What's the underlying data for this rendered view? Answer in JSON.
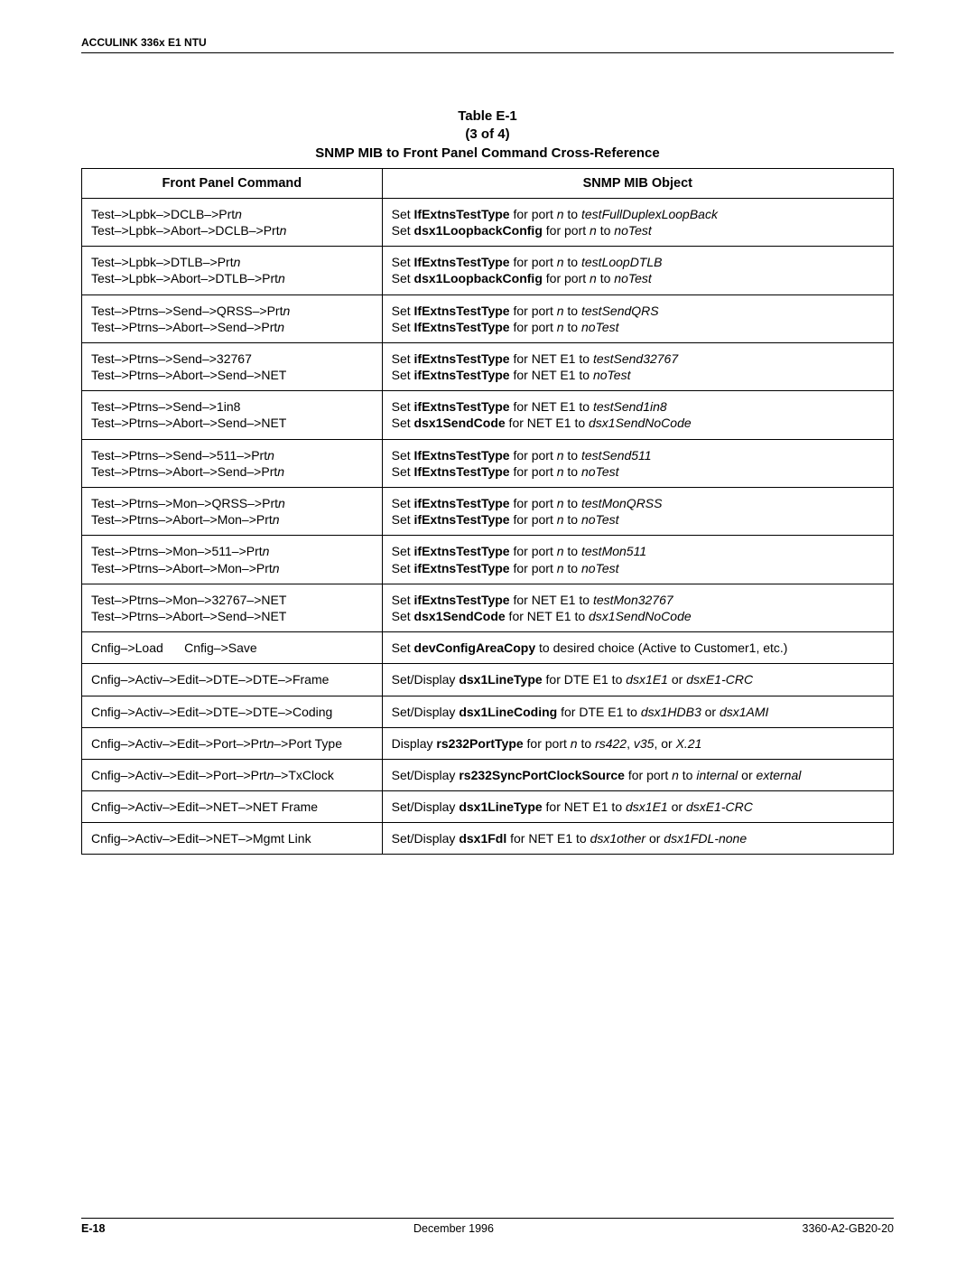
{
  "header": {
    "title": "ACCULINK 336x E1 NTU"
  },
  "caption": {
    "line1": "Table E-1",
    "line2": "(3 of 4)",
    "line3": "SNMP MIB to Front Panel Command Cross-Reference"
  },
  "columns": {
    "col1": "Front Panel Command",
    "col2": "SNMP MIB Object"
  },
  "rows": [
    {
      "cmd": [
        [
          {
            "t": "Test–>Lpbk–>DCLB–>Prt"
          },
          {
            "t": "n",
            "i": true
          }
        ],
        [
          {
            "t": "Test–>Lpbk–>Abort–>DCLB–>Prt"
          },
          {
            "t": "n",
            "i": true
          }
        ]
      ],
      "obj": [
        [
          {
            "t": "Set "
          },
          {
            "t": "IfExtnsTestType",
            "b": true
          },
          {
            "t": " for port "
          },
          {
            "t": "n",
            "i": true
          },
          {
            "t": " to "
          },
          {
            "t": "testFullDuplexLoopBack",
            "i": true
          }
        ],
        [
          {
            "t": "Set "
          },
          {
            "t": "dsx1LoopbackConfig",
            "b": true
          },
          {
            "t": " for port "
          },
          {
            "t": "n",
            "i": true
          },
          {
            "t": " to "
          },
          {
            "t": "noTest",
            "i": true
          }
        ]
      ]
    },
    {
      "cmd": [
        [
          {
            "t": "Test–>Lpbk–>DTLB–>Prt"
          },
          {
            "t": "n",
            "i": true
          }
        ],
        [
          {
            "t": "Test–>Lpbk–>Abort–>DTLB–>Prt"
          },
          {
            "t": "n",
            "i": true
          }
        ]
      ],
      "obj": [
        [
          {
            "t": "Set "
          },
          {
            "t": "IfExtnsTestType",
            "b": true
          },
          {
            "t": " for port "
          },
          {
            "t": "n",
            "i": true
          },
          {
            "t": " to "
          },
          {
            "t": "testLoopDTLB",
            "i": true
          }
        ],
        [
          {
            "t": "Set "
          },
          {
            "t": "dsx1LoopbackConfig",
            "b": true
          },
          {
            "t": " for port "
          },
          {
            "t": "n",
            "i": true
          },
          {
            "t": " to "
          },
          {
            "t": "noTest",
            "i": true
          }
        ]
      ]
    },
    {
      "cmd": [
        [
          {
            "t": "Test–>Ptrns–>Send–>QRSS–>Prt"
          },
          {
            "t": "n",
            "i": true
          }
        ],
        [
          {
            "t": "Test–>Ptrns–>Abort–>Send–>Prt"
          },
          {
            "t": "n",
            "i": true
          }
        ]
      ],
      "obj": [
        [
          {
            "t": "Set "
          },
          {
            "t": "IfExtnsTestType",
            "b": true
          },
          {
            "t": " for port "
          },
          {
            "t": "n",
            "i": true
          },
          {
            "t": " to "
          },
          {
            "t": "testSendQRS",
            "i": true
          }
        ],
        [
          {
            "t": "Set "
          },
          {
            "t": "IfExtnsTestType",
            "b": true
          },
          {
            "t": " for port "
          },
          {
            "t": "n",
            "i": true
          },
          {
            "t": " to "
          },
          {
            "t": "noTest",
            "i": true
          }
        ]
      ]
    },
    {
      "cmd": [
        [
          {
            "t": "Test–>Ptrns–>Send–>32767"
          }
        ],
        [
          {
            "t": "Test–>Ptrns–>Abort–>Send–>NET"
          }
        ]
      ],
      "obj": [
        [
          {
            "t": "Set "
          },
          {
            "t": "ifExtnsTestType",
            "b": true
          },
          {
            "t": " for NET E1 to "
          },
          {
            "t": "testSend32767",
            "i": true
          }
        ],
        [
          {
            "t": "Set "
          },
          {
            "t": "ifExtnsTestType",
            "b": true
          },
          {
            "t": " for NET E1 to "
          },
          {
            "t": "noTest",
            "i": true
          }
        ]
      ]
    },
    {
      "cmd": [
        [
          {
            "t": "Test–>Ptrns–>Send–>1in8"
          }
        ],
        [
          {
            "t": "Test–>Ptrns–>Abort–>Send–>NET"
          }
        ]
      ],
      "obj": [
        [
          {
            "t": "Set "
          },
          {
            "t": "ifExtnsTestType",
            "b": true
          },
          {
            "t": " for NET E1 to "
          },
          {
            "t": "testSend1in8",
            "i": true
          }
        ],
        [
          {
            "t": "Set "
          },
          {
            "t": "dsx1SendCode",
            "b": true
          },
          {
            "t": " for NET E1 to "
          },
          {
            "t": "dsx1SendNoCode",
            "i": true
          }
        ]
      ]
    },
    {
      "cmd": [
        [
          {
            "t": "Test–>Ptrns–>Send–>511–>Prt"
          },
          {
            "t": "n",
            "i": true
          }
        ],
        [
          {
            "t": "Test–>Ptrns–>Abort–>Send–>Prt"
          },
          {
            "t": "n",
            "i": true
          }
        ]
      ],
      "obj": [
        [
          {
            "t": "Set "
          },
          {
            "t": "IfExtnsTestType",
            "b": true
          },
          {
            "t": " for port "
          },
          {
            "t": "n",
            "i": true
          },
          {
            "t": " to "
          },
          {
            "t": "testSend511",
            "i": true
          }
        ],
        [
          {
            "t": "Set "
          },
          {
            "t": "IfExtnsTestType",
            "b": true
          },
          {
            "t": " for port "
          },
          {
            "t": "n",
            "i": true
          },
          {
            "t": " to "
          },
          {
            "t": "noTest",
            "i": true
          }
        ]
      ]
    },
    {
      "cmd": [
        [
          {
            "t": "Test–>Ptrns–>Mon–>QRSS–>Prt"
          },
          {
            "t": "n",
            "i": true
          }
        ],
        [
          {
            "t": "Test–>Ptrns–>Abort–>Mon–>Prt"
          },
          {
            "t": "n",
            "i": true
          }
        ]
      ],
      "obj": [
        [
          {
            "t": "Set "
          },
          {
            "t": "ifExtnsTestType",
            "b": true
          },
          {
            "t": " for port "
          },
          {
            "t": "n",
            "i": true
          },
          {
            "t": " to "
          },
          {
            "t": "testMonQRSS",
            "i": true
          }
        ],
        [
          {
            "t": "Set "
          },
          {
            "t": "ifExtnsTestType",
            "b": true
          },
          {
            "t": " for port "
          },
          {
            "t": "n",
            "i": true
          },
          {
            "t": " to "
          },
          {
            "t": "noTest",
            "i": true
          }
        ]
      ]
    },
    {
      "cmd": [
        [
          {
            "t": "Test–>Ptrns–>Mon–>511–>Prt"
          },
          {
            "t": "n",
            "i": true
          }
        ],
        [
          {
            "t": "Test–>Ptrns–>Abort–>Mon–>Prt"
          },
          {
            "t": "n",
            "i": true
          }
        ]
      ],
      "obj": [
        [
          {
            "t": "Set "
          },
          {
            "t": "ifExtnsTestType",
            "b": true
          },
          {
            "t": " for port "
          },
          {
            "t": "n",
            "i": true
          },
          {
            "t": " to "
          },
          {
            "t": "testMon511",
            "i": true
          }
        ],
        [
          {
            "t": "Set "
          },
          {
            "t": "ifExtnsTestType",
            "b": true
          },
          {
            "t": " for port "
          },
          {
            "t": "n",
            "i": true
          },
          {
            "t": " to "
          },
          {
            "t": "noTest",
            "i": true
          }
        ]
      ]
    },
    {
      "cmd": [
        [
          {
            "t": "Test–>Ptrns–>Mon–>32767–>NET"
          }
        ],
        [
          {
            "t": "Test–>Ptrns–>Abort–>Send–>NET"
          }
        ]
      ],
      "obj": [
        [
          {
            "t": "Set "
          },
          {
            "t": "ifExtnsTestType",
            "b": true
          },
          {
            "t": " for NET E1 to "
          },
          {
            "t": "testMon32767",
            "i": true
          }
        ],
        [
          {
            "t": "Set "
          },
          {
            "t": "dsx1SendCode",
            "b": true
          },
          {
            "t": " for NET E1 to "
          },
          {
            "t": "dsx1SendNoCode",
            "i": true
          }
        ]
      ]
    },
    {
      "cmd": [
        [
          {
            "t": "Cnfig–>Load      Cnfig–>Save"
          }
        ]
      ],
      "obj": [
        [
          {
            "t": "Set "
          },
          {
            "t": "devConfigAreaCopy",
            "b": true
          },
          {
            "t": " to desired choice (Active to Customer1, etc.)"
          }
        ]
      ]
    },
    {
      "cmd": [
        [
          {
            "t": "Cnfig–>Activ–>Edit–>DTE–>DTE–>Frame"
          }
        ]
      ],
      "obj": [
        [
          {
            "t": "Set/Display "
          },
          {
            "t": "dsx1LineType",
            "b": true
          },
          {
            "t": " for DTE E1 to "
          },
          {
            "t": "dsx1E1",
            "i": true
          },
          {
            "t": " or "
          },
          {
            "t": "dsxE1-CRC",
            "i": true
          }
        ]
      ]
    },
    {
      "cmd": [
        [
          {
            "t": "Cnfig–>Activ–>Edit–>DTE–>DTE–>Coding"
          }
        ]
      ],
      "obj": [
        [
          {
            "t": "Set/Display "
          },
          {
            "t": "dsx1LineCoding",
            "b": true
          },
          {
            "t": " for DTE E1 to "
          },
          {
            "t": "dsx1HDB3",
            "i": true
          },
          {
            "t": " or "
          },
          {
            "t": "dsx1AMI",
            "i": true
          }
        ]
      ]
    },
    {
      "cmd": [
        [
          {
            "t": "Cnfig–>Activ–>Edit–>Port–>Prt"
          },
          {
            "t": "n",
            "i": true
          },
          {
            "t": "–>Port Type"
          }
        ]
      ],
      "obj": [
        [
          {
            "t": "Display "
          },
          {
            "t": "rs232PortType",
            "b": true
          },
          {
            "t": " for port "
          },
          {
            "t": "n",
            "i": true
          },
          {
            "t": " to "
          },
          {
            "t": "rs422",
            "i": true
          },
          {
            "t": ", "
          },
          {
            "t": "v35",
            "i": true
          },
          {
            "t": ", or "
          },
          {
            "t": "X.21",
            "i": true
          }
        ]
      ]
    },
    {
      "cmd": [
        [
          {
            "t": "Cnfig–>Activ–>Edit–>Port–>Prt"
          },
          {
            "t": "n",
            "i": true
          },
          {
            "t": "–>TxClock"
          }
        ]
      ],
      "obj": [
        [
          {
            "t": "Set/Display "
          },
          {
            "t": "rs232SyncPortClockSource",
            "b": true
          },
          {
            "t": " for port "
          },
          {
            "t": "n",
            "i": true
          },
          {
            "t": " to "
          },
          {
            "t": "internal",
            "i": true
          },
          {
            "t": " or "
          },
          {
            "t": "external",
            "i": true
          }
        ]
      ]
    },
    {
      "cmd": [
        [
          {
            "t": "Cnfig–>Activ–>Edit–>NET–>NET Frame"
          }
        ]
      ],
      "obj": [
        [
          {
            "t": "Set/Display "
          },
          {
            "t": "dsx1LineType",
            "b": true
          },
          {
            "t": " for NET E1 to "
          },
          {
            "t": "dsx1E1",
            "i": true
          },
          {
            "t": " or "
          },
          {
            "t": "dsxE1-CRC",
            "i": true
          }
        ]
      ]
    },
    {
      "cmd": [
        [
          {
            "t": "Cnfig–>Activ–>Edit–>NET–>Mgmt Link"
          }
        ]
      ],
      "obj": [
        [
          {
            "t": "Set/Display "
          },
          {
            "t": "dsx1Fdl",
            "b": true
          },
          {
            "t": " for NET E1 to "
          },
          {
            "t": "dsx1other",
            "i": true
          },
          {
            "t": " or "
          },
          {
            "t": "dsx1FDL-none",
            "i": true
          }
        ]
      ]
    }
  ],
  "footer": {
    "left": "E-18",
    "center": "December 1996",
    "right": "3360-A2-GB20-20"
  }
}
